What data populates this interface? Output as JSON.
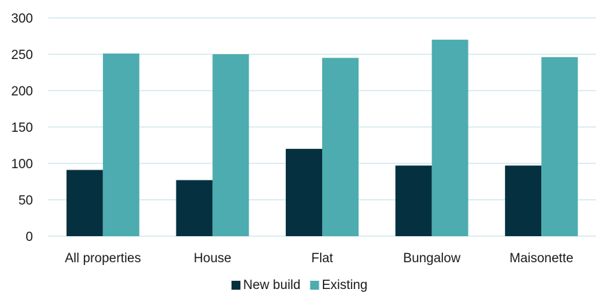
{
  "chart_data": {
    "type": "bar",
    "categories": [
      "All properties",
      "House",
      "Flat",
      "Bungalow",
      "Maisonette"
    ],
    "series": [
      {
        "name": "New build",
        "color": "#04303f",
        "values": [
          91,
          77,
          120,
          97,
          97
        ]
      },
      {
        "name": "Existing",
        "color": "#4dacb0",
        "values": [
          251,
          250,
          245,
          270,
          246
        ]
      }
    ],
    "ylim": [
      0,
      300
    ],
    "yticks": [
      0,
      50,
      100,
      150,
      200,
      250,
      300
    ],
    "grid": true,
    "gridline_color": "#b9dde3",
    "legend_position": "bottom",
    "title": "",
    "xlabel": "",
    "ylabel": ""
  }
}
